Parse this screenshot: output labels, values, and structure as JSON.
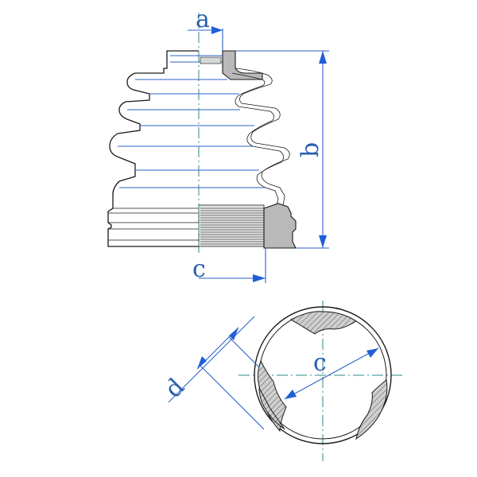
{
  "labels": {
    "a": "a",
    "b": "b",
    "c_top": "c",
    "c_circle": "c",
    "d": "d"
  },
  "colors": {
    "dimension": "#2b62c8",
    "arrow": "#1f5fd6",
    "outline": "#1a1a1a",
    "section_fill": "#b9b9b9",
    "centerline": "#2b8a8a"
  }
}
